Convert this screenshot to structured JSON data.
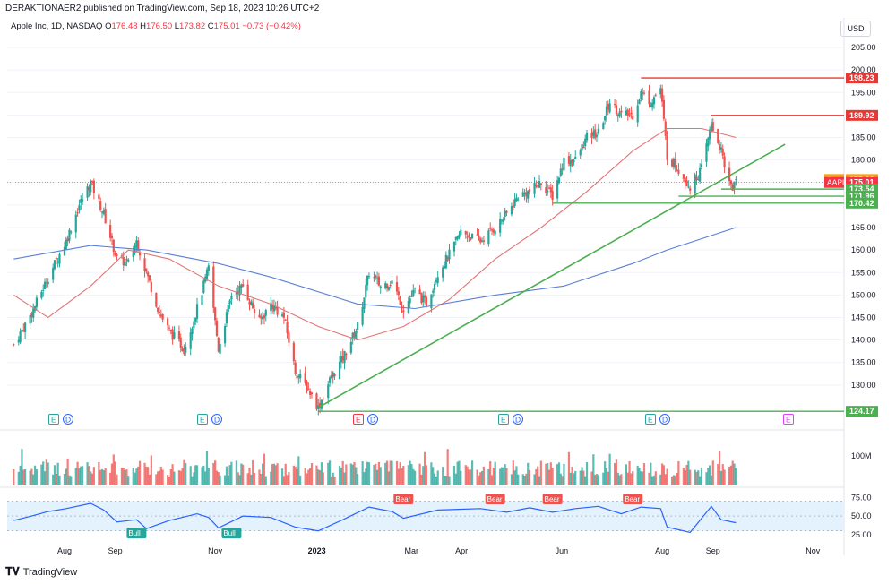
{
  "header": {
    "publisher": "DERAKTIONAER2 published on TradingView.com, Sep 18, 2023 10:26 UTC+2"
  },
  "legend": {
    "title": "Apple Inc, 1D, NASDAQ",
    "o_label": "O",
    "o": "176.48",
    "h_label": "H",
    "h": "176.50",
    "l_label": "L",
    "l": "173.82",
    "c_label": "C",
    "c": "175.01",
    "change": "−0.73 (−0.42%)"
  },
  "currency": "USD",
  "footer": {
    "brand": "TradingView"
  },
  "colors": {
    "up": "#26a69a",
    "down": "#ef5350",
    "ma_red": "#e57373",
    "ma_blue": "#5b7fd6",
    "trend_green": "#4caf50",
    "resistance": "#e53935",
    "rsi": "#2962ff",
    "rsi_band": "#e3f2fd"
  },
  "chart_data": {
    "type": "candlestick",
    "symbol": "AAPL",
    "ylim": [
      124,
      208
    ],
    "y_ticks": [
      130,
      135,
      140,
      145,
      150,
      155,
      160,
      165,
      170,
      175,
      180,
      185,
      190,
      195,
      200,
      205
    ],
    "x_labels": [
      "Aug",
      "Sep",
      "Nov",
      "2023",
      "Mar",
      "Apr",
      "Jun",
      "Aug",
      "Sep",
      "Nov"
    ],
    "close_path": [
      {
        "x": "2022-07-01",
        "y": 139
      },
      {
        "x": "2022-07-12",
        "y": 146
      },
      {
        "x": "2022-07-22",
        "y": 154
      },
      {
        "x": "2022-08-02",
        "y": 162
      },
      {
        "x": "2022-08-10",
        "y": 170
      },
      {
        "x": "2022-08-17",
        "y": 175
      },
      {
        "x": "2022-08-25",
        "y": 168
      },
      {
        "x": "2022-09-02",
        "y": 158
      },
      {
        "x": "2022-09-09",
        "y": 157
      },
      {
        "x": "2022-09-14",
        "y": 162
      },
      {
        "x": "2022-09-20",
        "y": 155
      },
      {
        "x": "2022-09-28",
        "y": 146
      },
      {
        "x": "2022-10-04",
        "y": 142
      },
      {
        "x": "2022-10-13",
        "y": 138
      },
      {
        "x": "2022-10-21",
        "y": 147
      },
      {
        "x": "2022-10-28",
        "y": 156
      },
      {
        "x": "2022-11-03",
        "y": 138
      },
      {
        "x": "2022-11-11",
        "y": 150
      },
      {
        "x": "2022-11-18",
        "y": 152
      },
      {
        "x": "2022-11-28",
        "y": 144
      },
      {
        "x": "2022-12-05",
        "y": 148
      },
      {
        "x": "2022-12-13",
        "y": 145
      },
      {
        "x": "2022-12-20",
        "y": 133
      },
      {
        "x": "2022-12-28",
        "y": 129
      },
      {
        "x": "2023-01-03",
        "y": 125
      },
      {
        "x": "2023-01-10",
        "y": 131
      },
      {
        "x": "2023-01-18",
        "y": 136
      },
      {
        "x": "2023-01-27",
        "y": 143
      },
      {
        "x": "2023-02-03",
        "y": 155
      },
      {
        "x": "2023-02-10",
        "y": 152
      },
      {
        "x": "2023-02-17",
        "y": 153
      },
      {
        "x": "2023-02-24",
        "y": 147
      },
      {
        "x": "2023-03-03",
        "y": 151
      },
      {
        "x": "2023-03-10",
        "y": 148
      },
      {
        "x": "2023-03-17",
        "y": 155
      },
      {
        "x": "2023-03-24",
        "y": 159
      },
      {
        "x": "2023-03-31",
        "y": 164
      },
      {
        "x": "2023-04-12",
        "y": 162
      },
      {
        "x": "2023-04-21",
        "y": 165
      },
      {
        "x": "2023-04-28",
        "y": 168
      },
      {
        "x": "2023-05-05",
        "y": 172
      },
      {
        "x": "2023-05-12",
        "y": 173
      },
      {
        "x": "2023-05-19",
        "y": 175
      },
      {
        "x": "2023-05-26",
        "y": 172
      },
      {
        "x": "2023-06-02",
        "y": 180
      },
      {
        "x": "2023-06-09",
        "y": 180
      },
      {
        "x": "2023-06-16",
        "y": 185
      },
      {
        "x": "2023-06-23",
        "y": 186
      },
      {
        "x": "2023-06-30",
        "y": 193
      },
      {
        "x": "2023-07-07",
        "y": 190
      },
      {
        "x": "2023-07-14",
        "y": 190
      },
      {
        "x": "2023-07-19",
        "y": 195
      },
      {
        "x": "2023-07-25",
        "y": 193
      },
      {
        "x": "2023-07-31",
        "y": 196
      },
      {
        "x": "2023-08-04",
        "y": 181
      },
      {
        "x": "2023-08-11",
        "y": 178
      },
      {
        "x": "2023-08-18",
        "y": 174
      },
      {
        "x": "2023-08-25",
        "y": 178
      },
      {
        "x": "2023-08-31",
        "y": 188
      },
      {
        "x": "2023-09-06",
        "y": 182
      },
      {
        "x": "2023-09-08",
        "y": 178
      },
      {
        "x": "2023-09-13",
        "y": 174
      },
      {
        "x": "2023-09-15",
        "y": 175
      }
    ],
    "moving_averages": [
      {
        "name": "MA red",
        "points": [
          {
            "x": "2022-07-01",
            "y": 150
          },
          {
            "x": "2022-07-22",
            "y": 145
          },
          {
            "x": "2022-08-17",
            "y": 152
          },
          {
            "x": "2022-09-09",
            "y": 160
          },
          {
            "x": "2022-10-04",
            "y": 158
          },
          {
            "x": "2022-11-03",
            "y": 152
          },
          {
            "x": "2022-12-05",
            "y": 148
          },
          {
            "x": "2023-01-03",
            "y": 143
          },
          {
            "x": "2023-01-27",
            "y": 140
          },
          {
            "x": "2023-02-24",
            "y": 143
          },
          {
            "x": "2023-03-24",
            "y": 149
          },
          {
            "x": "2023-04-21",
            "y": 158
          },
          {
            "x": "2023-05-19",
            "y": 165
          },
          {
            "x": "2023-06-16",
            "y": 173
          },
          {
            "x": "2023-07-14",
            "y": 182
          },
          {
            "x": "2023-08-04",
            "y": 187
          },
          {
            "x": "2023-08-25",
            "y": 187
          },
          {
            "x": "2023-09-15",
            "y": 185
          }
        ]
      },
      {
        "name": "MA blue",
        "points": [
          {
            "x": "2022-07-01",
            "y": 158
          },
          {
            "x": "2022-08-17",
            "y": 161
          },
          {
            "x": "2022-09-20",
            "y": 160
          },
          {
            "x": "2022-11-03",
            "y": 157
          },
          {
            "x": "2022-12-05",
            "y": 154
          },
          {
            "x": "2023-01-27",
            "y": 148
          },
          {
            "x": "2023-03-03",
            "y": 147
          },
          {
            "x": "2023-04-21",
            "y": 150
          },
          {
            "x": "2023-06-02",
            "y": 152
          },
          {
            "x": "2023-07-14",
            "y": 157
          },
          {
            "x": "2023-08-04",
            "y": 160
          },
          {
            "x": "2023-09-15",
            "y": 165
          }
        ]
      }
    ],
    "price_tags": [
      {
        "label": "198.23",
        "y": 198.23,
        "kind": "resistance"
      },
      {
        "label": "189.92",
        "y": 189.92,
        "kind": "resistance"
      },
      {
        "label": "175.69",
        "y": 175.69,
        "kind": "pre",
        "prefix": "Pre"
      },
      {
        "label": "175.01",
        "y": 175.01,
        "kind": "last",
        "prefix": "AAPL"
      },
      {
        "label": "173.54",
        "y": 173.54,
        "kind": "support"
      },
      {
        "label": "171.96",
        "y": 171.96,
        "kind": "support"
      },
      {
        "label": "170.42",
        "y": 170.42,
        "kind": "support"
      },
      {
        "label": "124.17",
        "y": 124.17,
        "kind": "support"
      }
    ],
    "earnings_markers": [
      "E",
      "D",
      "E",
      "D",
      "E",
      "D",
      "E",
      "D",
      "E",
      "D",
      "E"
    ],
    "volume_label": "100M",
    "rsi": {
      "ticks": [
        "75.00",
        "50.00",
        "25.00"
      ],
      "markers": [
        {
          "label": "Bull",
          "x": "2022-09-14"
        },
        {
          "label": "Bull",
          "x": "2022-11-11"
        },
        {
          "label": "Bear",
          "x": "2023-02-24"
        },
        {
          "label": "Bear",
          "x": "2023-04-21"
        },
        {
          "label": "Bear",
          "x": "2023-05-26"
        },
        {
          "label": "Bear",
          "x": "2023-07-14"
        }
      ],
      "values": [
        {
          "x": "2022-07-01",
          "y": 44
        },
        {
          "x": "2022-07-12",
          "y": 50
        },
        {
          "x": "2022-07-22",
          "y": 56
        },
        {
          "x": "2022-08-02",
          "y": 60
        },
        {
          "x": "2022-08-17",
          "y": 67
        },
        {
          "x": "2022-08-25",
          "y": 58
        },
        {
          "x": "2022-09-02",
          "y": 42
        },
        {
          "x": "2022-09-14",
          "y": 45
        },
        {
          "x": "2022-09-20",
          "y": 33
        },
        {
          "x": "2022-10-04",
          "y": 44
        },
        {
          "x": "2022-10-21",
          "y": 53
        },
        {
          "x": "2022-10-28",
          "y": 48
        },
        {
          "x": "2022-11-03",
          "y": 34
        },
        {
          "x": "2022-11-18",
          "y": 50
        },
        {
          "x": "2022-12-05",
          "y": 48
        },
        {
          "x": "2022-12-20",
          "y": 35
        },
        {
          "x": "2023-01-03",
          "y": 30
        },
        {
          "x": "2023-01-18",
          "y": 45
        },
        {
          "x": "2023-02-03",
          "y": 62
        },
        {
          "x": "2023-02-17",
          "y": 56
        },
        {
          "x": "2023-02-24",
          "y": 47
        },
        {
          "x": "2023-03-17",
          "y": 58
        },
        {
          "x": "2023-04-12",
          "y": 60
        },
        {
          "x": "2023-04-28",
          "y": 55
        },
        {
          "x": "2023-05-12",
          "y": 61
        },
        {
          "x": "2023-05-26",
          "y": 55
        },
        {
          "x": "2023-06-09",
          "y": 60
        },
        {
          "x": "2023-06-23",
          "y": 63
        },
        {
          "x": "2023-07-07",
          "y": 53
        },
        {
          "x": "2023-07-19",
          "y": 62
        },
        {
          "x": "2023-07-31",
          "y": 60
        },
        {
          "x": "2023-08-04",
          "y": 35
        },
        {
          "x": "2023-08-18",
          "y": 28
        },
        {
          "x": "2023-08-31",
          "y": 63
        },
        {
          "x": "2023-09-06",
          "y": 45
        },
        {
          "x": "2023-09-15",
          "y": 41
        }
      ]
    }
  }
}
